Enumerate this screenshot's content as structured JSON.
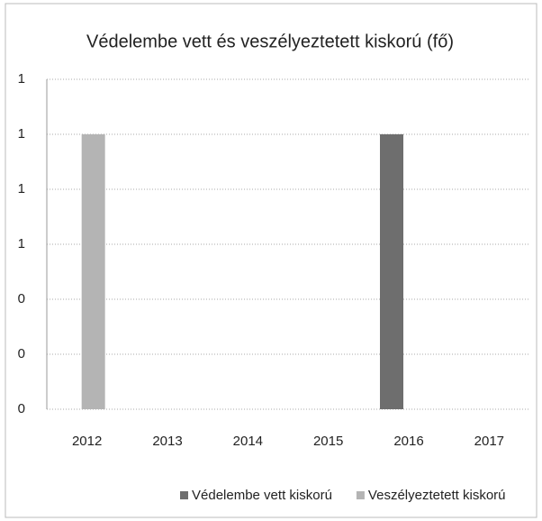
{
  "chart_data": {
    "type": "bar",
    "title": "Védelembe vett és veszélyeztetett kiskorú (fő)",
    "categories": [
      "2012",
      "2013",
      "2014",
      "2015",
      "2016",
      "2017"
    ],
    "series": [
      {
        "name": "Védelembe vett kiskorú",
        "color": "#6e6e6e",
        "values": [
          0,
          0,
          0,
          0,
          1,
          0
        ]
      },
      {
        "name": "Veszélyeztetett kiskorú",
        "color": "#b4b4b4",
        "values": [
          1,
          0,
          0,
          0,
          0,
          0
        ]
      }
    ],
    "ylim": [
      0,
      1.2
    ],
    "yticks": [
      0,
      {
        "value": 0.2,
        "label": "0"
      },
      {
        "value": 0.4,
        "label": "0"
      },
      {
        "value": 0.6,
        "label": "1"
      },
      {
        "value": 0.8,
        "label": "1"
      },
      1,
      {
        "value": 1.2,
        "label": "1"
      }
    ],
    "grid": true,
    "legend": "bottom"
  }
}
